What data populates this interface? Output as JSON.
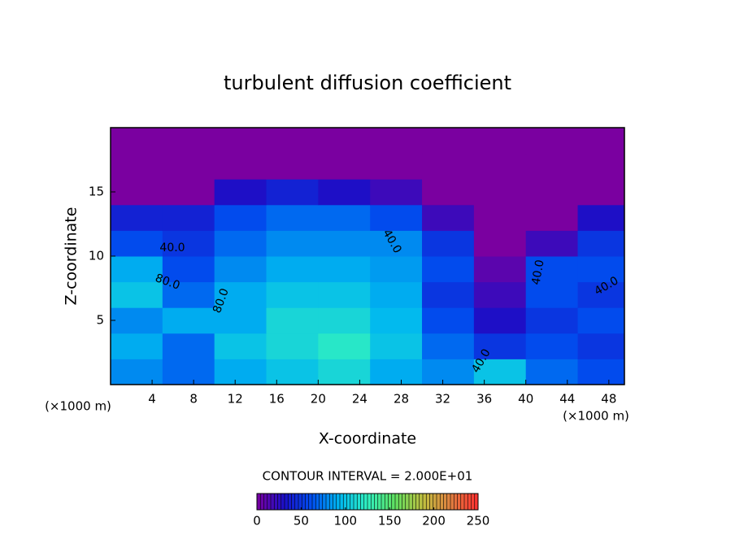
{
  "chart_data": {
    "type": "heatmap",
    "title": "turbulent diffusion coefficient",
    "xlabel": "X-coordinate",
    "ylabel": "Z-coordinate",
    "x_unit": "(×1000 m)",
    "contour_interval": "CONTOUR INTERVAL = 2.000E+01",
    "contour_labels": [
      "40.0",
      "40.0",
      "80.0",
      "80.0",
      "40.0",
      "40.0",
      "40.0"
    ],
    "x": [
      2.5,
      7.5,
      12.5,
      17.5,
      22.5,
      27.5,
      32.5,
      37.5,
      42.5,
      47.5
    ],
    "y": [
      1,
      3,
      5,
      7,
      9,
      11,
      13,
      15,
      17,
      19
    ],
    "values": [
      [
        80,
        70,
        90,
        100,
        110,
        90,
        80,
        100,
        70,
        60
      ],
      [
        90,
        70,
        100,
        110,
        120,
        100,
        70,
        50,
        60,
        50
      ],
      [
        80,
        90,
        90,
        110,
        110,
        95,
        60,
        30,
        50,
        60
      ],
      [
        100,
        70,
        90,
        100,
        100,
        90,
        50,
        20,
        60,
        50
      ],
      [
        90,
        60,
        80,
        90,
        90,
        85,
        60,
        10,
        60,
        60
      ],
      [
        60,
        50,
        70,
        80,
        80,
        80,
        50,
        0,
        20,
        50
      ],
      [
        40,
        40,
        60,
        70,
        70,
        60,
        20,
        0,
        0,
        30
      ],
      [
        0,
        0,
        30,
        40,
        30,
        20,
        0,
        0,
        0,
        0
      ],
      [
        0,
        0,
        0,
        0,
        0,
        0,
        0,
        0,
        0,
        0
      ],
      [
        0,
        0,
        0,
        0,
        0,
        0,
        0,
        0,
        0,
        0
      ]
    ],
    "xlim": [
      0,
      49.5
    ],
    "ylim": [
      0,
      20
    ],
    "xticks": [
      4,
      8,
      12,
      16,
      20,
      24,
      28,
      32,
      36,
      40,
      44,
      48
    ],
    "yticks": [
      5,
      10,
      15
    ],
    "clim": [
      0,
      250
    ],
    "cticks": [
      0,
      50,
      100,
      150,
      200,
      250
    ],
    "colorscale": [
      "#7a00a0",
      "#1a10c8",
      "#0050f0",
      "#00b8f0",
      "#30f0c0",
      "#60e060",
      "#c0c040",
      "#e08040",
      "#ff3030"
    ]
  }
}
